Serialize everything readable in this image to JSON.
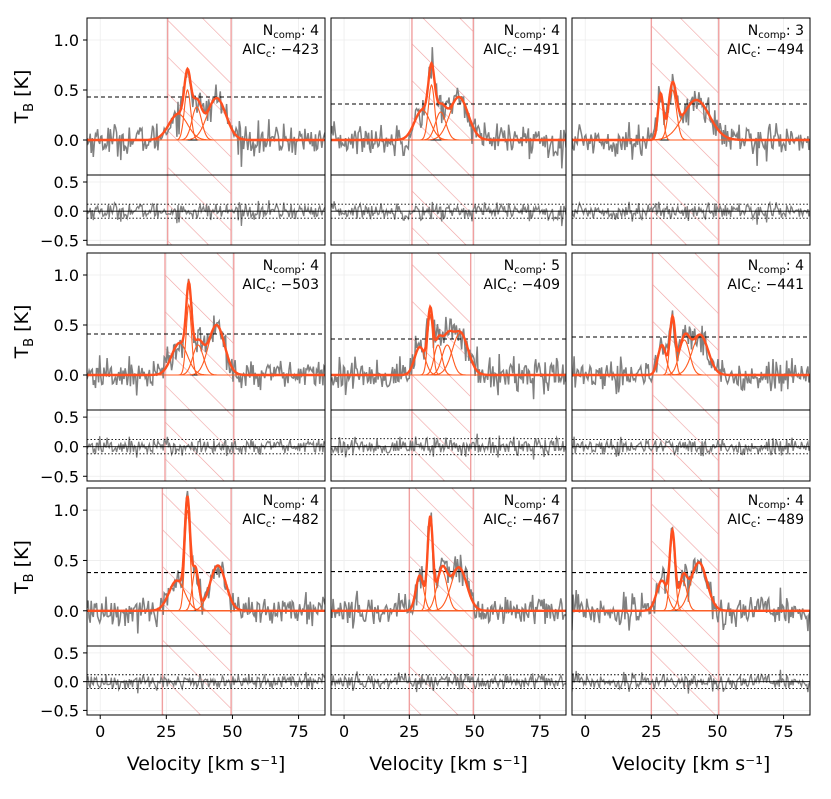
{
  "figure": {
    "xlabel": "Velocity [km s⁻¹]",
    "ylabel": "T",
    "ylabel_sub": "B",
    "ylabel_unit": "[K]",
    "info_n_label": "N",
    "info_n_sub": "comp",
    "info_aic_label": "AIC",
    "info_aic_sub": "c"
  },
  "chart_data": {
    "type": "line",
    "xlim": [
      -5,
      85
    ],
    "main_ylim": [
      -0.35,
      1.22
    ],
    "resid_ylim": [
      -0.58,
      0.62
    ],
    "xticks": [
      0,
      25,
      50,
      75
    ],
    "main_yticks": [
      "0.0",
      "0.5",
      "1.0"
    ],
    "resid_yticks": [
      "-0.5",
      "0.0",
      "0.5"
    ],
    "spectrum_color": "#808080",
    "fit_color": "#ff4f1f",
    "component_color": "#ff5a1f",
    "hatch_color": "#f0a0a0",
    "panels": [
      {
        "row": 0,
        "col": 0,
        "n_comp": "4",
        "aicc": "−423",
        "threshold": 0.43,
        "window": [
          25.5,
          49.5
        ],
        "noise": 0.08,
        "components": [
          {
            "amp": 0.26,
            "center": 29.5,
            "sigma": 3.5
          },
          {
            "amp": 0.5,
            "center": 33.0,
            "sigma": 1.2
          },
          {
            "amp": 0.33,
            "center": 36.5,
            "sigma": 1.8
          },
          {
            "amp": 0.42,
            "center": 44.0,
            "sigma": 3.5
          }
        ]
      },
      {
        "row": 0,
        "col": 1,
        "n_comp": "4",
        "aicc": "−491",
        "threshold": 0.36,
        "window": [
          26.0,
          49.5
        ],
        "noise": 0.08,
        "components": [
          {
            "amp": 0.3,
            "center": 30.0,
            "sigma": 3.0
          },
          {
            "amp": 0.55,
            "center": 33.5,
            "sigma": 1.2
          },
          {
            "amp": 0.28,
            "center": 37.0,
            "sigma": 2.0
          },
          {
            "amp": 0.43,
            "center": 44.0,
            "sigma": 3.5
          }
        ]
      },
      {
        "row": 0,
        "col": 2,
        "n_comp": "3",
        "aicc": "−494",
        "threshold": 0.36,
        "window": [
          25.0,
          50.5
        ],
        "noise": 0.08,
        "components": [
          {
            "amp": 0.45,
            "center": 28.5,
            "sigma": 1.0
          },
          {
            "amp": 0.5,
            "center": 33.0,
            "sigma": 1.5
          },
          {
            "amp": 0.4,
            "center": 42.0,
            "sigma": 5.0
          }
        ]
      },
      {
        "row": 1,
        "col": 0,
        "n_comp": "4",
        "aicc": "−503",
        "threshold": 0.41,
        "window": [
          24.5,
          50.5
        ],
        "noise": 0.08,
        "components": [
          {
            "amp": 0.32,
            "center": 30.0,
            "sigma": 3.0
          },
          {
            "amp": 0.7,
            "center": 33.5,
            "sigma": 1.0
          },
          {
            "amp": 0.3,
            "center": 37.0,
            "sigma": 2.0
          },
          {
            "amp": 0.5,
            "center": 44.0,
            "sigma": 3.0
          }
        ]
      },
      {
        "row": 1,
        "col": 1,
        "n_comp": "5",
        "aicc": "−409",
        "threshold": 0.36,
        "window": [
          26.0,
          48.5
        ],
        "noise": 0.09,
        "components": [
          {
            "amp": 0.28,
            "center": 29.0,
            "sigma": 2.0
          },
          {
            "amp": 0.6,
            "center": 33.0,
            "sigma": 1.0
          },
          {
            "amp": 0.3,
            "center": 36.0,
            "sigma": 1.5
          },
          {
            "amp": 0.3,
            "center": 39.5,
            "sigma": 2.0
          },
          {
            "amp": 0.42,
            "center": 44.5,
            "sigma": 3.0
          }
        ]
      },
      {
        "row": 1,
        "col": 2,
        "n_comp": "4",
        "aicc": "−441",
        "threshold": 0.38,
        "window": [
          25.5,
          50.5
        ],
        "noise": 0.08,
        "components": [
          {
            "amp": 0.3,
            "center": 29.0,
            "sigma": 1.5
          },
          {
            "amp": 0.55,
            "center": 33.0,
            "sigma": 1.0
          },
          {
            "amp": 0.35,
            "center": 37.5,
            "sigma": 2.0
          },
          {
            "amp": 0.4,
            "center": 43.5,
            "sigma": 3.0
          }
        ]
      },
      {
        "row": 2,
        "col": 0,
        "n_comp": "4",
        "aicc": "−482",
        "threshold": 0.38,
        "window": [
          23.5,
          49.5
        ],
        "noise": 0.08,
        "components": [
          {
            "amp": 0.3,
            "center": 29.0,
            "sigma": 3.0
          },
          {
            "amp": 1.0,
            "center": 33.0,
            "sigma": 1.0
          },
          {
            "amp": 0.4,
            "center": 36.0,
            "sigma": 1.2
          },
          {
            "amp": 0.45,
            "center": 44.5,
            "sigma": 3.0
          }
        ]
      },
      {
        "row": 2,
        "col": 1,
        "n_comp": "4",
        "aicc": "−467",
        "threshold": 0.39,
        "window": [
          25.0,
          49.5
        ],
        "noise": 0.08,
        "components": [
          {
            "amp": 0.35,
            "center": 29.0,
            "sigma": 1.5
          },
          {
            "amp": 0.9,
            "center": 33.0,
            "sigma": 1.0
          },
          {
            "amp": 0.4,
            "center": 37.5,
            "sigma": 2.0
          },
          {
            "amp": 0.43,
            "center": 44.0,
            "sigma": 3.0
          }
        ]
      },
      {
        "row": 2,
        "col": 2,
        "n_comp": "4",
        "aicc": "−489",
        "threshold": 0.38,
        "window": [
          25.0,
          50.5
        ],
        "noise": 0.08,
        "components": [
          {
            "amp": 0.3,
            "center": 29.0,
            "sigma": 2.0
          },
          {
            "amp": 0.75,
            "center": 33.0,
            "sigma": 1.0
          },
          {
            "amp": 0.3,
            "center": 37.0,
            "sigma": 1.5
          },
          {
            "amp": 0.48,
            "center": 43.0,
            "sigma": 3.0
          }
        ]
      }
    ]
  }
}
